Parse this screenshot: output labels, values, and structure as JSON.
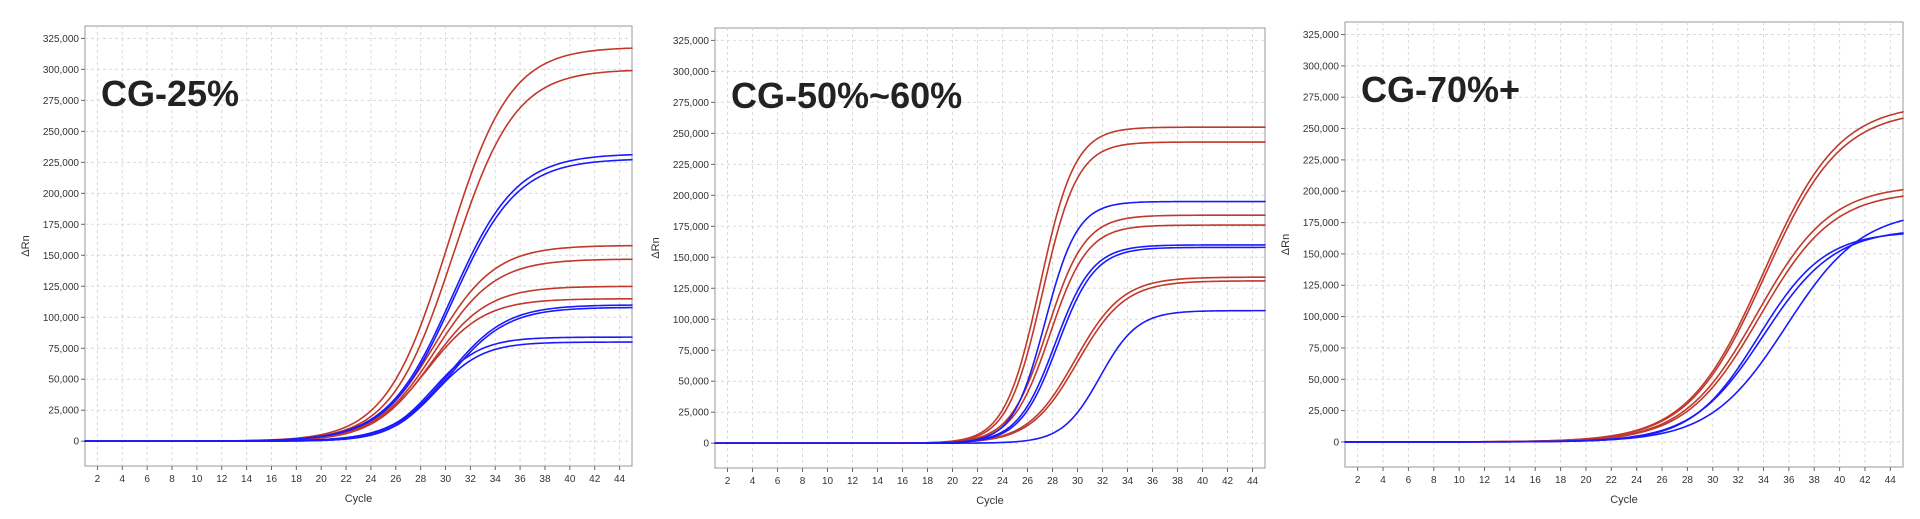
{
  "chart_data": [
    {
      "type": "line",
      "annotation": "CG-25%",
      "xlabel": "Cycle",
      "ylabel": "ΔRn",
      "xlim": [
        1,
        45
      ],
      "ylim": [
        -20000,
        335000
      ],
      "xticks": [
        2,
        4,
        6,
        8,
        10,
        12,
        14,
        16,
        18,
        20,
        22,
        24,
        26,
        28,
        30,
        32,
        34,
        36,
        38,
        40,
        42,
        44
      ],
      "yticks": [
        0,
        25000,
        50000,
        75000,
        100000,
        125000,
        150000,
        175000,
        200000,
        225000,
        250000,
        275000,
        300000,
        325000
      ],
      "yticklabels": [
        "0",
        "25,000",
        "50,000",
        "75,000",
        "100,000",
        "125,000",
        "150,000",
        "175,000",
        "200,000",
        "225,000",
        "250,000",
        "275,000",
        "300,000",
        "325,000"
      ],
      "grid": true,
      "series": [
        {
          "color": "#c0392b",
          "plateau": 318000,
          "midpoint": 30.2,
          "slope": 2.5
        },
        {
          "color": "#c0392b",
          "plateau": 300000,
          "midpoint": 30.6,
          "slope": 2.5
        },
        {
          "color": "#c0392b",
          "plateau": 158000,
          "midpoint": 29.2,
          "slope": 2.4
        },
        {
          "color": "#c0392b",
          "plateau": 147000,
          "midpoint": 29.2,
          "slope": 2.4
        },
        {
          "color": "#c0392b",
          "plateau": 125000,
          "midpoint": 28.8,
          "slope": 2.3
        },
        {
          "color": "#c0392b",
          "plateau": 115000,
          "midpoint": 28.5,
          "slope": 2.3
        },
        {
          "color": "#1a1aff",
          "plateau": 232000,
          "midpoint": 30.5,
          "slope": 2.6
        },
        {
          "color": "#1a1aff",
          "plateau": 228000,
          "midpoint": 30.6,
          "slope": 2.6
        },
        {
          "color": "#1a1aff",
          "plateau": 110000,
          "midpoint": 30.3,
          "slope": 2.3
        },
        {
          "color": "#1a1aff",
          "plateau": 108000,
          "midpoint": 30.4,
          "slope": 2.3
        },
        {
          "color": "#1a1aff",
          "plateau": 84000,
          "midpoint": 29.0,
          "slope": 1.9
        },
        {
          "color": "#1a1aff",
          "plateau": 80000,
          "midpoint": 29.2,
          "slope": 1.9
        }
      ]
    },
    {
      "type": "line",
      "annotation": "CG-50%~60%",
      "xlabel": "Cycle",
      "ylabel": "ΔRn",
      "xlim": [
        1,
        45
      ],
      "ylim": [
        -20000,
        335000
      ],
      "xticks": [
        2,
        4,
        6,
        8,
        10,
        12,
        14,
        16,
        18,
        20,
        22,
        24,
        26,
        28,
        30,
        32,
        34,
        36,
        38,
        40,
        42,
        44
      ],
      "yticks": [
        0,
        25000,
        50000,
        75000,
        100000,
        125000,
        150000,
        175000,
        200000,
        225000,
        250000,
        275000,
        300000,
        325000
      ],
      "yticklabels": [
        "0",
        "25,000",
        "50,000",
        "75,000",
        "100,000",
        "125,000",
        "150,000",
        "175,000",
        "200,000",
        "225,000",
        "250,000",
        "275,000",
        "300,000",
        "325,000"
      ],
      "grid": true,
      "series": [
        {
          "color": "#c0392b",
          "plateau": 255000,
          "midpoint": 27.0,
          "slope": 1.4
        },
        {
          "color": "#c0392b",
          "plateau": 243000,
          "midpoint": 27.2,
          "slope": 1.4
        },
        {
          "color": "#c0392b",
          "plateau": 184000,
          "midpoint": 27.6,
          "slope": 1.5
        },
        {
          "color": "#c0392b",
          "plateau": 176000,
          "midpoint": 27.8,
          "slope": 1.5
        },
        {
          "color": "#c0392b",
          "plateau": 134000,
          "midpoint": 29.8,
          "slope": 1.9
        },
        {
          "color": "#c0392b",
          "plateau": 131000,
          "midpoint": 30.0,
          "slope": 1.9
        },
        {
          "color": "#1a1aff",
          "plateau": 195000,
          "midpoint": 27.4,
          "slope": 1.3
        },
        {
          "color": "#1a1aff",
          "plateau": 160000,
          "midpoint": 28.2,
          "slope": 1.5
        },
        {
          "color": "#1a1aff",
          "plateau": 158000,
          "midpoint": 28.4,
          "slope": 1.5
        },
        {
          "color": "#1a1aff",
          "plateau": 107000,
          "midpoint": 31.8,
          "slope": 1.5
        }
      ]
    },
    {
      "type": "line",
      "annotation": "CG-70%+",
      "xlabel": "Cycle",
      "ylabel": "ΔRn",
      "xlim": [
        1,
        45
      ],
      "ylim": [
        -20000,
        335000
      ],
      "xticks": [
        2,
        4,
        6,
        8,
        10,
        12,
        14,
        16,
        18,
        20,
        22,
        24,
        26,
        28,
        30,
        32,
        34,
        36,
        38,
        40,
        42,
        44
      ],
      "yticks": [
        0,
        25000,
        50000,
        75000,
        100000,
        125000,
        150000,
        175000,
        200000,
        225000,
        250000,
        275000,
        300000,
        325000
      ],
      "yticklabels": [
        "0",
        "25,000",
        "50,000",
        "75,000",
        "100,000",
        "125,000",
        "150,000",
        "175,000",
        "200,000",
        "225,000",
        "250,000",
        "275,000",
        "300,000",
        "325,000"
      ],
      "grid": true,
      "series": [
        {
          "color": "#c0392b",
          "plateau": 270000,
          "midpoint": 34.0,
          "slope": 3.0
        },
        {
          "color": "#c0392b",
          "plateau": 265000,
          "midpoint": 34.1,
          "slope": 3.0
        },
        {
          "color": "#c0392b",
          "plateau": 205000,
          "midpoint": 33.5,
          "slope": 2.9
        },
        {
          "color": "#c0392b",
          "plateau": 200000,
          "midpoint": 33.7,
          "slope": 2.9
        },
        {
          "color": "#1a1aff",
          "plateau": 168000,
          "midpoint": 33.6,
          "slope": 2.6
        },
        {
          "color": "#1a1aff",
          "plateau": 170000,
          "midpoint": 34.0,
          "slope": 2.8
        },
        {
          "color": "#1a1aff",
          "plateau": 185000,
          "midpoint": 35.8,
          "slope": 3.0
        }
      ]
    }
  ]
}
